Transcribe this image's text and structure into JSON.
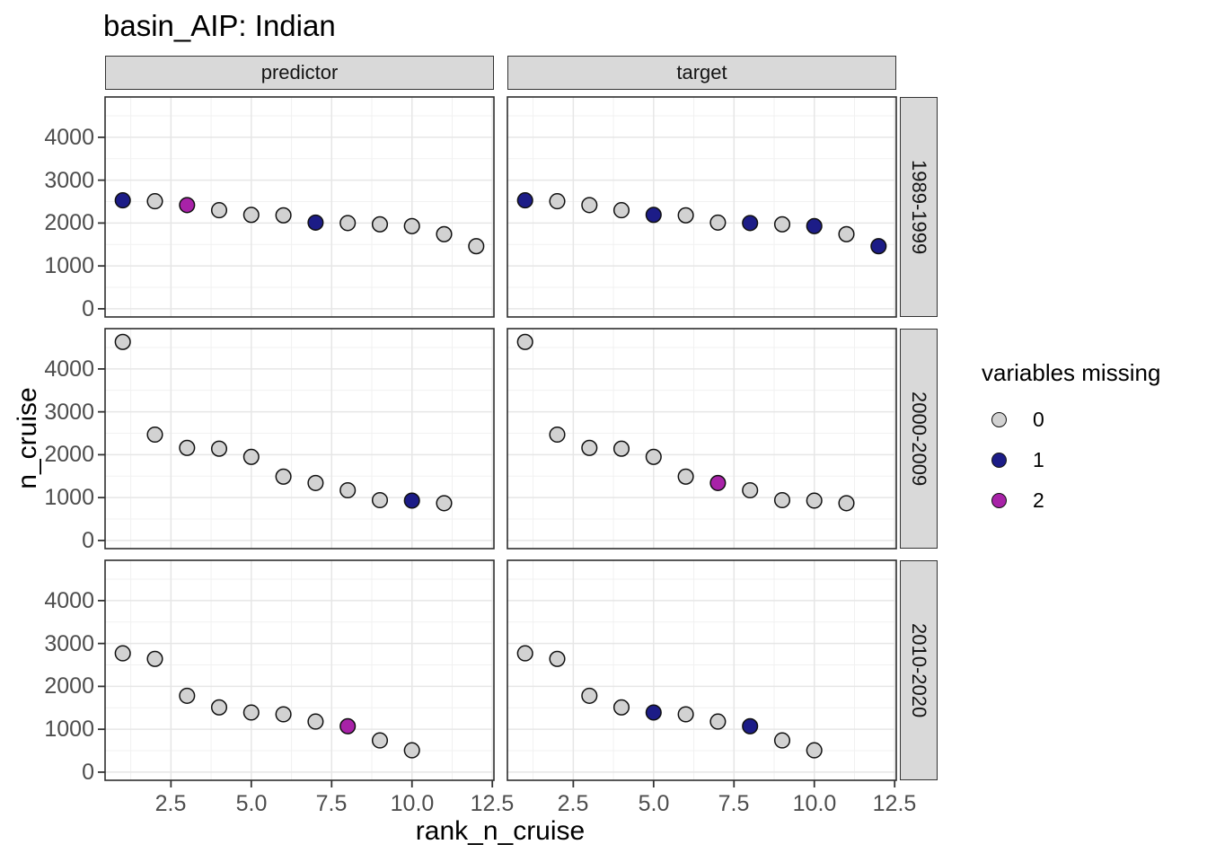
{
  "title": "basin_AIP: Indian",
  "chart_data": {
    "type": "scatter",
    "title": "basin_AIP: Indian",
    "xlabel": "rank_n_cruise",
    "ylabel": "n_cruise",
    "facet_cols": [
      "predictor",
      "target"
    ],
    "facet_rows": [
      "1989-1999",
      "2000-2009",
      "2010-2020"
    ],
    "x_ticks": [
      {
        "v": 2.5,
        "label": "2.5"
      },
      {
        "v": 5.0,
        "label": "5.0"
      },
      {
        "v": 7.5,
        "label": "7.5"
      },
      {
        "v": 10.0,
        "label": "10.0"
      },
      {
        "v": 12.5,
        "label": "12.5"
      }
    ],
    "y_ticks": [
      {
        "v": 0,
        "label": "0"
      },
      {
        "v": 1000,
        "label": "1000"
      },
      {
        "v": 2000,
        "label": "2000"
      },
      {
        "v": 3000,
        "label": "3000"
      },
      {
        "v": 4000,
        "label": "4000"
      }
    ],
    "x_minor": [
      1.25,
      3.75,
      6.25,
      8.75,
      11.25
    ],
    "y_minor": [
      500,
      1500,
      2500,
      3500,
      4500
    ],
    "xlim": [
      0.45,
      12.55
    ],
    "ylim": [
      -190,
      4940
    ],
    "grid": true,
    "legend": {
      "title": "variables missing",
      "position": "right",
      "entries": [
        {
          "label": "0",
          "color": "#d2d2d2"
        },
        {
          "label": "1",
          "color": "#1c1c87"
        },
        {
          "label": "2",
          "color": "#a822a8"
        }
      ]
    },
    "panels": [
      {
        "col": "predictor",
        "row": "1989-1999",
        "x": [
          1,
          2,
          3,
          4,
          5,
          6,
          7,
          8,
          9,
          10,
          11,
          12
        ],
        "y": [
          2530,
          2510,
          2420,
          2300,
          2190,
          2180,
          2010,
          2000,
          1970,
          1930,
          1740,
          1460
        ],
        "missing": [
          1,
          0,
          2,
          0,
          0,
          0,
          1,
          0,
          0,
          0,
          0,
          0
        ]
      },
      {
        "col": "target",
        "row": "1989-1999",
        "x": [
          1,
          2,
          3,
          4,
          5,
          6,
          7,
          8,
          9,
          10,
          11,
          12
        ],
        "y": [
          2530,
          2510,
          2420,
          2300,
          2190,
          2180,
          2010,
          2000,
          1970,
          1930,
          1740,
          1460
        ],
        "missing": [
          1,
          0,
          0,
          0,
          1,
          0,
          0,
          1,
          0,
          1,
          0,
          1
        ]
      },
      {
        "col": "predictor",
        "row": "2000-2009",
        "x": [
          1,
          2,
          3,
          4,
          5,
          6,
          7,
          8,
          9,
          10,
          11
        ],
        "y": [
          4630,
          2470,
          2160,
          2140,
          1950,
          1490,
          1340,
          1170,
          940,
          930,
          870
        ],
        "missing": [
          0,
          0,
          0,
          0,
          0,
          0,
          0,
          0,
          0,
          1,
          0
        ]
      },
      {
        "col": "target",
        "row": "2000-2009",
        "x": [
          1,
          2,
          3,
          4,
          5,
          6,
          7,
          8,
          9,
          10,
          11
        ],
        "y": [
          4630,
          2470,
          2160,
          2140,
          1950,
          1490,
          1340,
          1170,
          940,
          930,
          870
        ],
        "missing": [
          0,
          0,
          0,
          0,
          0,
          0,
          2,
          0,
          0,
          0,
          0
        ]
      },
      {
        "col": "predictor",
        "row": "2010-2020",
        "x": [
          1,
          2,
          3,
          4,
          5,
          6,
          7,
          8,
          9,
          10
        ],
        "y": [
          2770,
          2640,
          1780,
          1510,
          1390,
          1350,
          1180,
          1070,
          740,
          510
        ],
        "missing": [
          0,
          0,
          0,
          0,
          0,
          0,
          0,
          2,
          0,
          0
        ]
      },
      {
        "col": "target",
        "row": "2010-2020",
        "x": [
          1,
          2,
          3,
          4,
          5,
          6,
          7,
          8,
          9,
          10
        ],
        "y": [
          2770,
          2640,
          1780,
          1510,
          1390,
          1350,
          1180,
          1070,
          740,
          510
        ],
        "missing": [
          0,
          0,
          0,
          0,
          1,
          0,
          0,
          1,
          0,
          0
        ]
      }
    ],
    "style_colors": {
      "strip_fill": "#d9d9d9",
      "panel_border": "#2e2e2e",
      "grid_major": "#e6e6e6",
      "grid_minor": "#f1f1f1",
      "tick_text": "#4d4d4d",
      "point_stroke": "#101010"
    }
  }
}
